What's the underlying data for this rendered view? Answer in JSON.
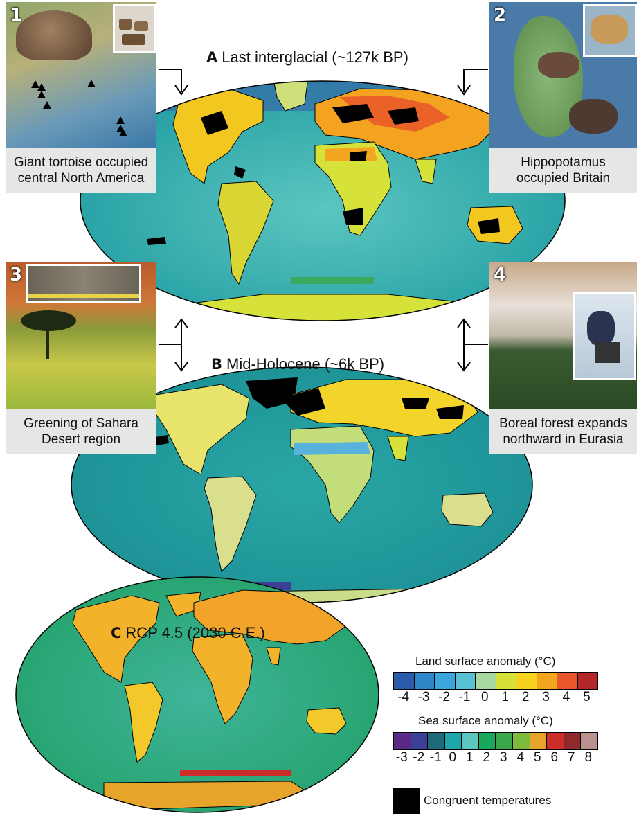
{
  "panels": {
    "a": {
      "letter": "A",
      "title": "Last interglacial (~127k BP)"
    },
    "b": {
      "letter": "B",
      "title": "Mid-Holocene (~6k BP)"
    },
    "c": {
      "letter": "C",
      "title": "RCP 4.5 (2030 C.E.)"
    }
  },
  "photos": [
    {
      "number": "1",
      "caption_line1": "Giant tortoise occupied",
      "caption_line2": "central North America"
    },
    {
      "number": "2",
      "caption_line1": "Hippopotamus",
      "caption_line2": "occupied Britain"
    },
    {
      "number": "3",
      "caption_line1": "Greening of Sahara",
      "caption_line2": "Desert region"
    },
    {
      "number": "4",
      "caption_line1": "Boreal forest expands",
      "caption_line2": "northward in Eurasia"
    }
  ],
  "legend": {
    "land_title": "Land surface anomaly (°C)",
    "land_ticks": [
      "-4",
      "-3",
      "-2",
      "-1",
      "0",
      "1",
      "2",
      "3",
      "4",
      "5"
    ],
    "land_colors": [
      "#2b5cab",
      "#2f86c8",
      "#3aa6dc",
      "#58c2d4",
      "#a6d8a0",
      "#d6e23a",
      "#f7d21e",
      "#f3a51f",
      "#e8572a",
      "#b3262a"
    ],
    "sea_title": "Sea surface anomaly (°C)",
    "sea_ticks": [
      "-3",
      "-2",
      "-1",
      "0",
      "1",
      "2",
      "3",
      "4",
      "5",
      "6",
      "7",
      "8"
    ],
    "sea_colors": [
      "#5b2a86",
      "#3b3f98",
      "#1d6b7a",
      "#1fa6a8",
      "#5cc6c0",
      "#19a85a",
      "#3aa84a",
      "#7dbb3d",
      "#e6a42a",
      "#cc2d2a",
      "#8e2a2a",
      "#b9918e"
    ],
    "congruent_label": "Congruent temperatures",
    "congruent_color": "#000000"
  }
}
